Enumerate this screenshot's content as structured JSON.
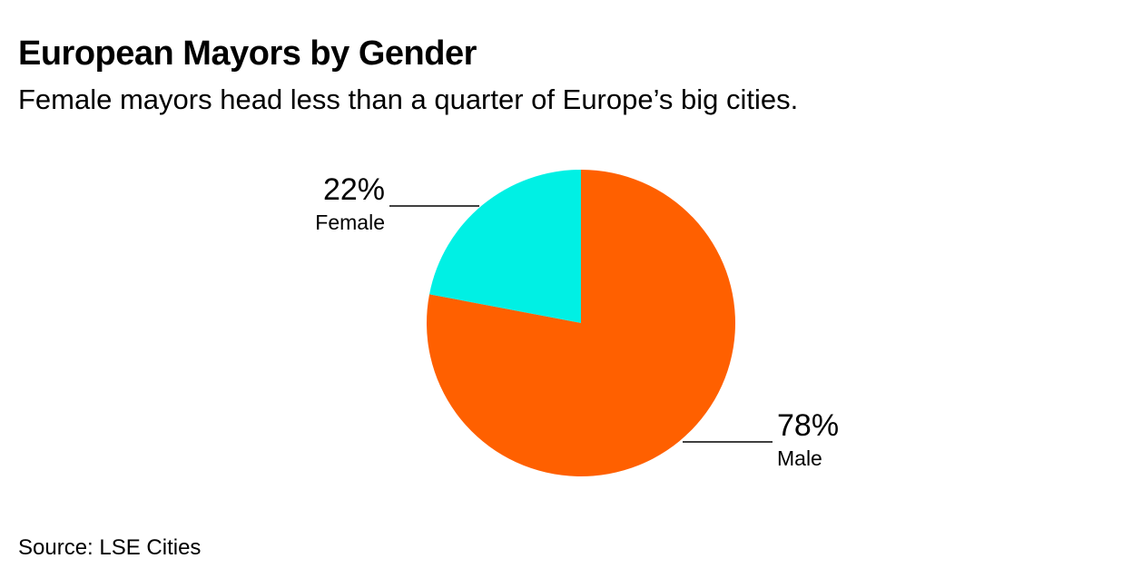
{
  "title": "European Mayors by Gender",
  "subtitle": "Female mayors head less than a quarter of Europe’s big cities.",
  "source": "Source: LSE Cities",
  "chart_data": {
    "type": "pie",
    "title": "European Mayors by Gender",
    "subtitle": "Female mayors head less than a quarter of Europe’s big cities.",
    "slices": [
      {
        "label": "Female",
        "value": 22,
        "value_label": "22%",
        "color": "#00f0e4"
      },
      {
        "label": "Male",
        "value": 78,
        "value_label": "78%",
        "color": "#ff6000"
      }
    ],
    "start": "12 o'clock, counter-clockwise",
    "legend": "none",
    "grid": false
  }
}
